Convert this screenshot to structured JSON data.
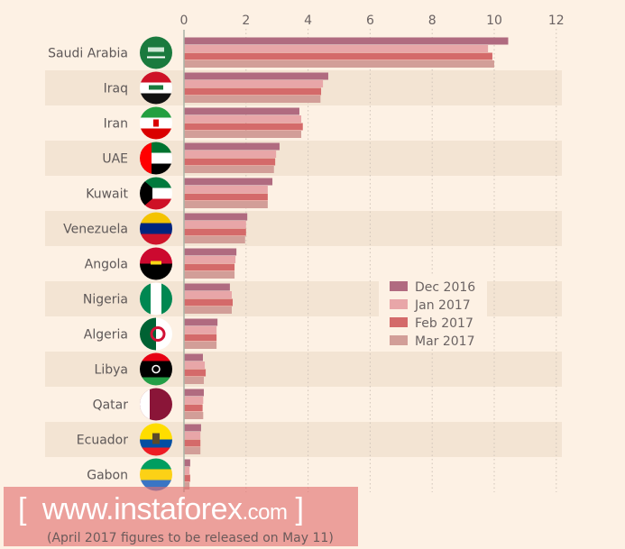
{
  "chart_data": {
    "type": "bar",
    "orientation": "horizontal",
    "categories": [
      "Saudi Arabia",
      "Iraq",
      "Iran",
      "UAE",
      "Kuwait",
      "Venezuela",
      "Angola",
      "Nigeria",
      "Algeria",
      "Libya",
      "Qatar",
      "Ecuador",
      "Gabon"
    ],
    "series": [
      {
        "name": "Dec 2016",
        "color": "#b06b80",
        "values": [
          10.45,
          4.65,
          3.72,
          3.08,
          2.85,
          2.04,
          1.69,
          1.48,
          1.08,
          0.61,
          0.64,
          0.55,
          0.2
        ]
      },
      {
        "name": "Jan 2017",
        "color": "#e8a6a8",
        "values": [
          9.8,
          4.48,
          3.78,
          2.97,
          2.7,
          2.0,
          1.66,
          1.54,
          1.05,
          0.67,
          0.62,
          0.53,
          0.18
        ]
      },
      {
        "name": "Feb 2017",
        "color": "#d46a6a",
        "values": [
          9.94,
          4.42,
          3.83,
          2.94,
          2.7,
          2.0,
          1.63,
          1.57,
          1.05,
          0.7,
          0.6,
          0.53,
          0.2
        ]
      },
      {
        "name": "Mar 2017",
        "color": "#d29e98",
        "values": [
          10.0,
          4.4,
          3.78,
          2.9,
          2.7,
          1.97,
          1.63,
          1.54,
          1.05,
          0.64,
          0.62,
          0.53,
          0.18
        ]
      }
    ],
    "xlim": [
      0,
      12
    ],
    "xticks": [
      "0",
      "2",
      "4",
      "6",
      "8",
      "10",
      "12"
    ],
    "grid": true,
    "legend": "center-right",
    "title": "",
    "xlabel": "",
    "ylabel": ""
  },
  "flags": [
    "saudi-arabia-flag",
    "iraq-flag",
    "iran-flag",
    "uae-flag",
    "kuwait-flag",
    "venezuela-flag",
    "angola-flag",
    "nigeria-flag",
    "algeria-flag",
    "libya-flag",
    "qatar-flag",
    "ecuador-flag",
    "gabon-flag"
  ],
  "watermark": {
    "main": "www.instaforex",
    "domain": ".com",
    "open": "[",
    "close": "]"
  },
  "note": "(April 2017 figures to be released on May 11)"
}
